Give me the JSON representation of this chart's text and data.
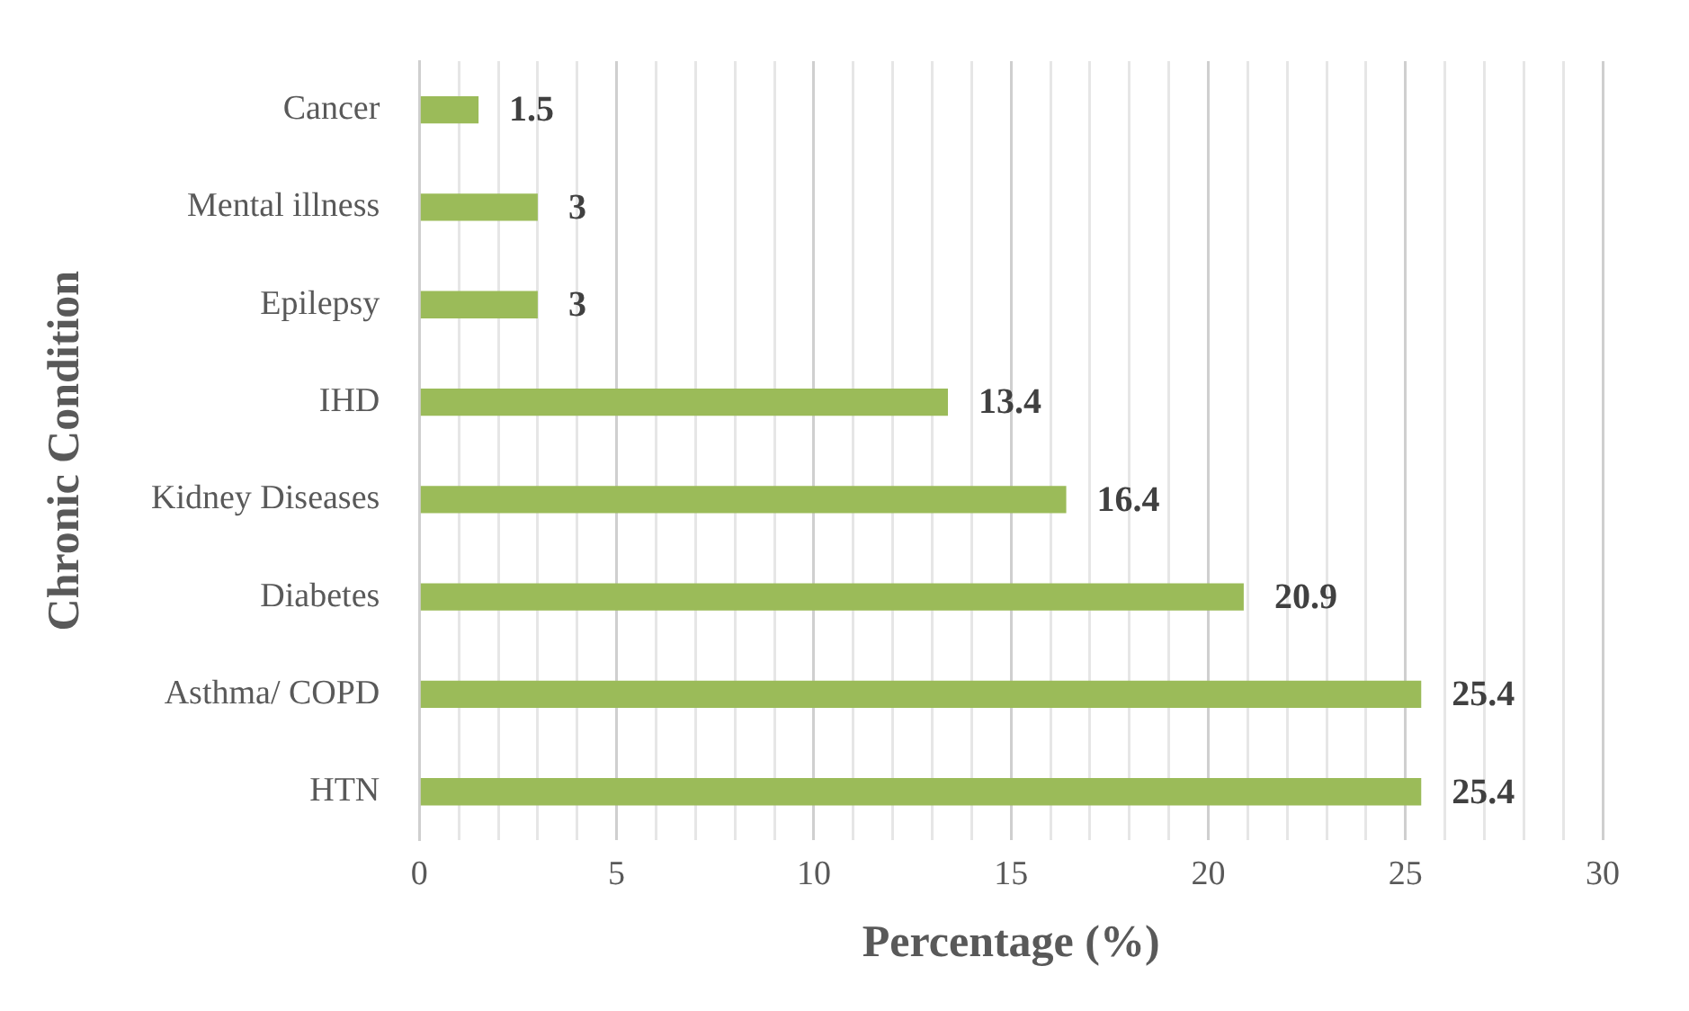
{
  "chart_data": {
    "type": "bar",
    "orientation": "horizontal",
    "xlabel": "Percentage (%)",
    "ylabel": "Chronic Condition",
    "categories": [
      "Cancer",
      "Mental illness",
      "Epilepsy",
      "IHD",
      "Kidney Diseases",
      "Diabetes",
      "Asthma/ COPD",
      "HTN"
    ],
    "values": [
      1.5,
      3,
      3,
      13.4,
      16.4,
      20.9,
      25.4,
      25.4
    ],
    "color": "#9bbb59",
    "data_labels": true,
    "grid": "x",
    "legend": false,
    "xlim": [
      0,
      30
    ],
    "xticks": [
      0,
      {
        "value": 1,
        "label": null
      },
      {
        "value": 2,
        "label": null
      },
      {
        "value": 3,
        "label": null
      },
      {
        "value": 4,
        "label": null
      },
      5,
      {
        "value": 6,
        "label": null
      },
      {
        "value": 7,
        "label": null
      },
      {
        "value": 8,
        "label": null
      },
      {
        "value": 9,
        "label": null
      },
      10,
      {
        "value": 11,
        "label": null
      },
      {
        "value": 12,
        "label": null
      },
      {
        "value": 13,
        "label": null
      },
      {
        "value": 14,
        "label": null
      },
      15,
      {
        "value": 16,
        "label": null
      },
      {
        "value": 17,
        "label": null
      },
      {
        "value": 18,
        "label": null
      },
      {
        "value": 19,
        "label": null
      },
      20,
      {
        "value": 21,
        "label": null
      },
      {
        "value": 22,
        "label": null
      },
      {
        "value": 23,
        "label": null
      },
      {
        "value": 24,
        "label": null
      },
      25,
      {
        "value": 26,
        "label": null
      },
      {
        "value": 27,
        "label": null
      },
      {
        "value": 28,
        "label": null
      },
      {
        "value": 29,
        "label": null
      },
      30
    ]
  }
}
